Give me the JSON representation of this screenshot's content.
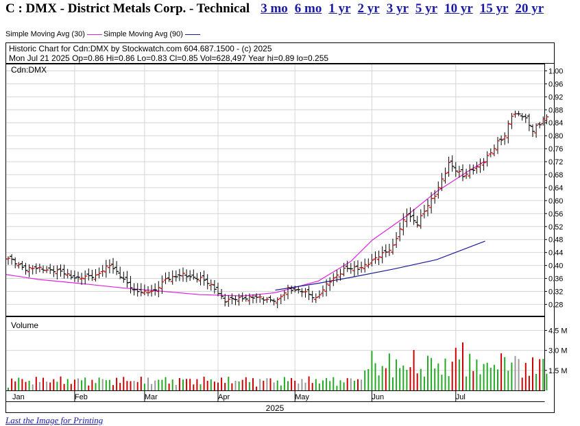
{
  "header": {
    "title": "C : DMX - District Metals Corp. - Technical",
    "periods": [
      "3 mo",
      "6 mo",
      "1 yr",
      "2 yr",
      "3 yr",
      "5 yr",
      "10 yr",
      "15 yr",
      "20 yr"
    ]
  },
  "legend": [
    {
      "label": "Simple Moving Avg (30)",
      "color": "#dd22dd"
    },
    {
      "label": "Simple Moving Avg (90)",
      "color": "#1a1a99"
    }
  ],
  "info": {
    "line1": "Historic Chart for Cdn:DMX by Stockwatch.com 604.687.1500 - (c) 2025",
    "line2": "Mon Jul 21 2025   Op=0.86  Hi=0.86  Lo=0.83  Cl=0.85  Vol=628,497  Year hi=0.89  lo=0.255"
  },
  "price_panel_label": "Cdn:DMX",
  "volume_panel_label": "Volume",
  "footer_link": "Last the Image for Printing",
  "chart_data": {
    "type": "ohlc",
    "symbol": "Cdn:DMX",
    "x_label": "2025",
    "months": [
      "Jan",
      "Feb",
      "Mar",
      "Apr",
      "May",
      "Jun",
      "Jul"
    ],
    "price_ticks": [
      "1.00",
      "0.96",
      "0.92",
      "0.88",
      "0.84",
      "0.80",
      "0.76",
      "0.72",
      "0.68",
      "0.64",
      "0.60",
      "0.56",
      "0.52",
      "0.48",
      "0.44",
      "0.40",
      "0.36",
      "0.32",
      "0.28"
    ],
    "price_range": [
      0.245,
      1.02
    ],
    "volume_ticks": [
      "4.5 M",
      "3.0 M",
      "1.5 M"
    ],
    "volume_range": [
      0,
      5.5
    ],
    "bar_colors": {
      "up": "#dd0000",
      "down": "#000000",
      "vol_up": "#22aa22",
      "vol_down": "#cc0000",
      "vol_flat": "#999999"
    },
    "anchors": [
      {
        "t": 0,
        "c": 0.42
      },
      {
        "t": 5,
        "c": 0.39
      },
      {
        "t": 10,
        "c": 0.39
      },
      {
        "t": 15,
        "c": 0.38
      },
      {
        "t": 20,
        "c": 0.36
      },
      {
        "t": 25,
        "c": 0.37
      },
      {
        "t": 29,
        "c": 0.4
      },
      {
        "t": 32,
        "c": 0.37
      },
      {
        "t": 36,
        "c": 0.32
      },
      {
        "t": 42,
        "c": 0.32
      },
      {
        "t": 45,
        "c": 0.36
      },
      {
        "t": 50,
        "c": 0.37
      },
      {
        "t": 55,
        "c": 0.36
      },
      {
        "t": 59,
        "c": 0.33
      },
      {
        "t": 62,
        "c": 0.29
      },
      {
        "t": 66,
        "c": 0.3
      },
      {
        "t": 72,
        "c": 0.3
      },
      {
        "t": 77,
        "c": 0.29
      },
      {
        "t": 80,
        "c": 0.33
      },
      {
        "t": 84,
        "c": 0.32
      },
      {
        "t": 88,
        "c": 0.3
      },
      {
        "t": 92,
        "c": 0.35
      },
      {
        "t": 96,
        "c": 0.39
      },
      {
        "t": 100,
        "c": 0.39
      },
      {
        "t": 105,
        "c": 0.42
      },
      {
        "t": 110,
        "c": 0.46
      },
      {
        "t": 114,
        "c": 0.56
      },
      {
        "t": 117,
        "c": 0.53
      },
      {
        "t": 122,
        "c": 0.62
      },
      {
        "t": 126,
        "c": 0.71
      },
      {
        "t": 130,
        "c": 0.68
      },
      {
        "t": 134,
        "c": 0.7
      },
      {
        "t": 138,
        "c": 0.75
      },
      {
        "t": 142,
        "c": 0.8
      },
      {
        "t": 144,
        "c": 0.87
      },
      {
        "t": 147,
        "c": 0.86
      },
      {
        "t": 150,
        "c": 0.82
      },
      {
        "t": 153,
        "c": 0.85
      }
    ],
    "sma30": [
      [
        0.0,
        0.372
      ],
      [
        0.02,
        0.367
      ],
      [
        0.06,
        0.357
      ],
      [
        0.14,
        0.344
      ],
      [
        0.22,
        0.33
      ],
      [
        0.3,
        0.319
      ],
      [
        0.36,
        0.31
      ],
      [
        0.44,
        0.306
      ],
      [
        0.5,
        0.316
      ],
      [
        0.58,
        0.352
      ],
      [
        0.64,
        0.412
      ],
      [
        0.68,
        0.478
      ],
      [
        0.74,
        0.548
      ],
      [
        0.8,
        0.628
      ],
      [
        0.86,
        0.692
      ],
      [
        0.89,
        0.722
      ]
    ],
    "sma90": [
      [
        0.5,
        0.324
      ],
      [
        0.58,
        0.345
      ],
      [
        0.64,
        0.363
      ],
      [
        0.72,
        0.389
      ],
      [
        0.8,
        0.418
      ],
      [
        0.89,
        0.475
      ]
    ]
  }
}
